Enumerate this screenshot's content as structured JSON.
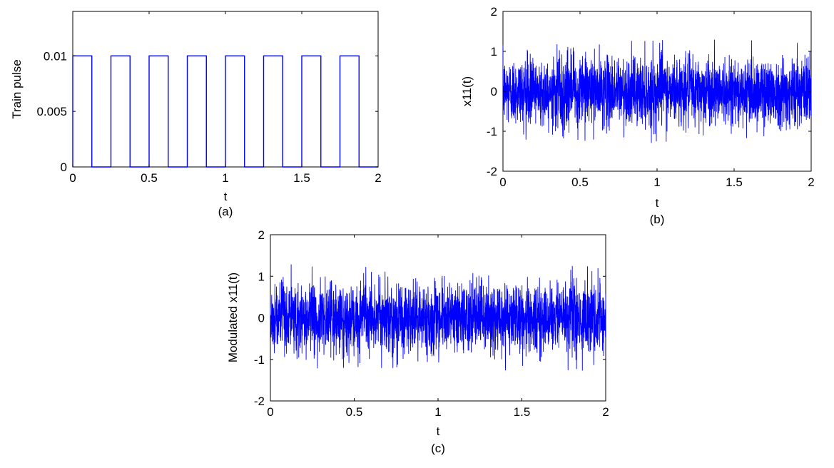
{
  "chart_data": [
    {
      "type": "line",
      "panel_label": "(a)",
      "xlabel": "t",
      "ylabel": "Train pulse",
      "xlim": [
        0,
        2
      ],
      "ylim": [
        0,
        0.014
      ],
      "xticks": [
        "0",
        "0.5",
        "1",
        "1.5",
        "2"
      ],
      "yticks": [
        "0",
        "0.005",
        "0.01"
      ],
      "color": "#0000ff",
      "pulse_amplitude": 0.01,
      "pulse_period": 0.25,
      "pulse_width": 0.125,
      "pulse_starts": [
        0,
        0.25,
        0.5,
        0.75,
        1.0,
        1.25,
        1.5,
        1.75
      ]
    },
    {
      "type": "line",
      "panel_label": "(b)",
      "xlabel": "t",
      "ylabel": "x11(t)",
      "xlim": [
        0,
        2
      ],
      "ylim": [
        -2,
        2
      ],
      "xticks": [
        "0",
        "0.5",
        "1",
        "1.5",
        "2"
      ],
      "yticks": [
        "-2",
        "-1",
        "0",
        "1",
        "2"
      ],
      "color": "#0000ff",
      "signal_envelope": [
        -1.3,
        1.3
      ]
    },
    {
      "type": "line",
      "panel_label": "(c)",
      "xlabel": "t",
      "ylabel": "Modulated x11(t)",
      "xlim": [
        0,
        2
      ],
      "ylim": [
        -2,
        2
      ],
      "xticks": [
        "0",
        "0.5",
        "1",
        "1.5",
        "2"
      ],
      "yticks": [
        "-2",
        "-1",
        "0",
        "1",
        "2"
      ],
      "color": "#0000ff",
      "signal_envelope": [
        -1.3,
        1.3
      ]
    }
  ]
}
